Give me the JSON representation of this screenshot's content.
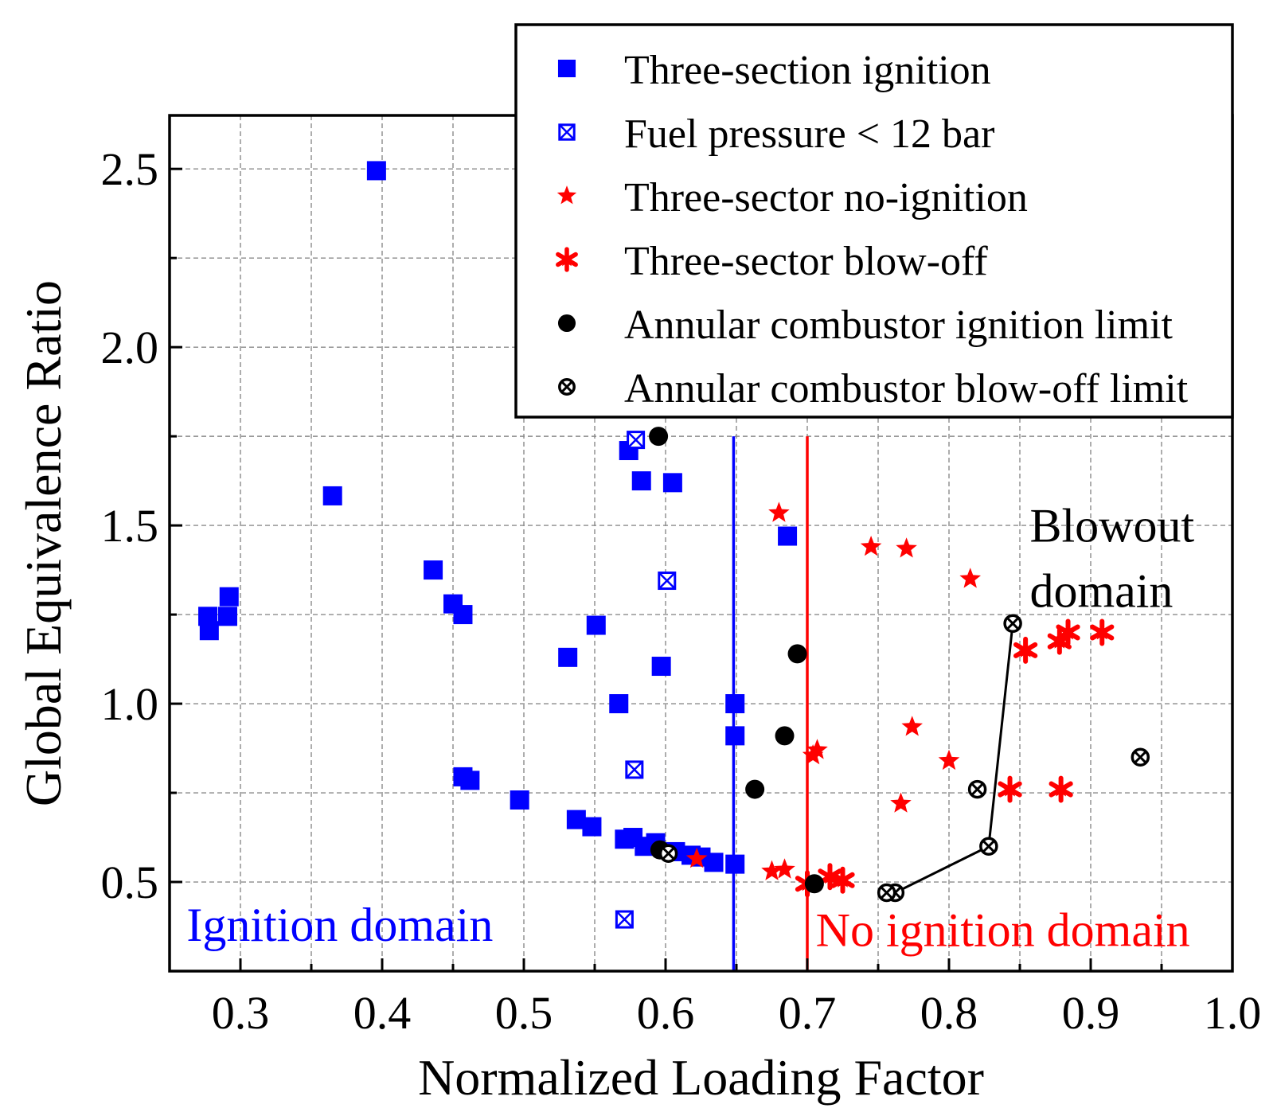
{
  "chart_data": {
    "type": "scatter",
    "title": "",
    "xlabel": "Normalized Loading Factor",
    "ylabel": "Global Equivalence Ratio",
    "xlim": [
      0.25,
      1.0
    ],
    "ylim": [
      0.25,
      2.65
    ],
    "xticks": [
      "0.3",
      "0.4",
      "0.5",
      "0.6",
      "0.7",
      "0.8",
      "0.9",
      "1.0"
    ],
    "xtick_values": [
      0.3,
      0.4,
      0.5,
      0.6,
      0.7,
      0.8,
      0.9,
      1.0
    ],
    "yticks": [
      "0.5",
      "1.0",
      "1.5",
      "2.0",
      "2.5"
    ],
    "ytick_values": [
      0.5,
      1.0,
      1.5,
      2.0,
      2.5
    ],
    "grid": true,
    "legend_position": "top-right",
    "colors": {
      "blue": "#0000ff",
      "red": "#ff0000",
      "black": "#000000"
    },
    "series": [
      {
        "name": "Three-section ignition",
        "marker": "square",
        "color": "#0000ff",
        "points": [
          [
            0.396,
            2.495
          ],
          [
            0.365,
            1.583
          ],
          [
            0.277,
            1.245
          ],
          [
            0.278,
            1.205
          ],
          [
            0.292,
            1.3
          ],
          [
            0.291,
            1.245
          ],
          [
            0.436,
            1.375
          ],
          [
            0.45,
            1.28
          ],
          [
            0.457,
            1.25
          ],
          [
            0.531,
            1.13
          ],
          [
            0.551,
            1.22
          ],
          [
            0.597,
            1.105
          ],
          [
            0.567,
            1.0
          ],
          [
            0.574,
            1.71
          ],
          [
            0.583,
            1.625
          ],
          [
            0.605,
            1.62
          ],
          [
            0.686,
            1.47
          ],
          [
            0.649,
            1.0
          ],
          [
            0.649,
            0.91
          ],
          [
            0.457,
            0.795
          ],
          [
            0.462,
            0.785
          ],
          [
            0.497,
            0.73
          ],
          [
            0.537,
            0.675
          ],
          [
            0.548,
            0.655
          ],
          [
            0.571,
            0.62
          ],
          [
            0.577,
            0.625
          ],
          [
            0.585,
            0.6
          ],
          [
            0.593,
            0.61
          ],
          [
            0.607,
            0.585
          ],
          [
            0.618,
            0.575
          ],
          [
            0.625,
            0.57
          ],
          [
            0.634,
            0.555
          ],
          [
            0.649,
            0.55
          ]
        ]
      },
      {
        "name": "Fuel pressure < 12 bar",
        "marker": "boxed-x",
        "color": "#0000ff",
        "points": [
          [
            0.579,
            1.74
          ],
          [
            0.601,
            1.345
          ],
          [
            0.578,
            0.815
          ],
          [
            0.571,
            0.395
          ]
        ]
      },
      {
        "name": "Three-sector no-ignition",
        "marker": "star",
        "color": "#ff0000",
        "points": [
          [
            0.68,
            1.535
          ],
          [
            0.745,
            1.44
          ],
          [
            0.77,
            1.435
          ],
          [
            0.815,
            1.35
          ],
          [
            0.707,
            0.87
          ],
          [
            0.704,
            0.855
          ],
          [
            0.774,
            0.935
          ],
          [
            0.8,
            0.84
          ],
          [
            0.766,
            0.72
          ],
          [
            0.622,
            0.565
          ],
          [
            0.675,
            0.53
          ],
          [
            0.684,
            0.535
          ]
        ]
      },
      {
        "name": "Three-sector blow-off",
        "marker": "asterisk",
        "color": "#ff0000",
        "points": [
          [
            0.884,
            1.2
          ],
          [
            0.908,
            1.2
          ],
          [
            0.878,
            1.175
          ],
          [
            0.854,
            1.15
          ],
          [
            0.843,
            0.76
          ],
          [
            0.879,
            0.76
          ],
          [
            0.7,
            0.495
          ],
          [
            0.716,
            0.515
          ],
          [
            0.725,
            0.505
          ]
        ]
      },
      {
        "name": "Annular combustor ignition limit",
        "marker": "circle",
        "color": "#000000",
        "points": [
          [
            0.595,
            1.75
          ],
          [
            0.693,
            1.14
          ],
          [
            0.684,
            0.91
          ],
          [
            0.663,
            0.76
          ],
          [
            0.596,
            0.59
          ],
          [
            0.705,
            0.495
          ]
        ]
      },
      {
        "name": "Annular combustor blow-off limit",
        "marker": "circle-x",
        "color": "#000000",
        "points": [
          [
            0.845,
            1.225
          ],
          [
            0.828,
            0.6
          ],
          [
            0.762,
            0.47
          ],
          [
            0.756,
            0.47
          ],
          [
            0.82,
            0.76
          ],
          [
            0.935,
            0.85
          ],
          [
            0.602,
            0.58
          ]
        ]
      }
    ],
    "boundary_line": {
      "name": "blow-off boundary",
      "color": "#000000",
      "points": [
        [
          0.756,
          0.47
        ],
        [
          0.762,
          0.47
        ],
        [
          0.828,
          0.6
        ],
        [
          0.845,
          1.225
        ]
      ]
    },
    "reference_lines": [
      {
        "name": "ignition limit line",
        "x": 0.648,
        "y_range": [
          0.25,
          1.75
        ],
        "color": "#0000ff"
      },
      {
        "name": "no-ignition limit line",
        "x": 0.7,
        "y_range": [
          0.25,
          1.75
        ],
        "color": "#ff0000"
      }
    ],
    "annotations": [
      {
        "id": "ignition",
        "lines": [
          "Ignition domain"
        ],
        "x": 0.262,
        "y": 0.335,
        "color": "#0000ff"
      },
      {
        "id": "no_ignition",
        "lines": [
          "No ignition domain"
        ],
        "x": 0.706,
        "y": 0.32,
        "color": "#ff0000"
      },
      {
        "id": "blowout",
        "lines": [
          "Blowout",
          "domain"
        ],
        "x": 0.857,
        "y": 1.455,
        "color": "#000000"
      }
    ]
  }
}
